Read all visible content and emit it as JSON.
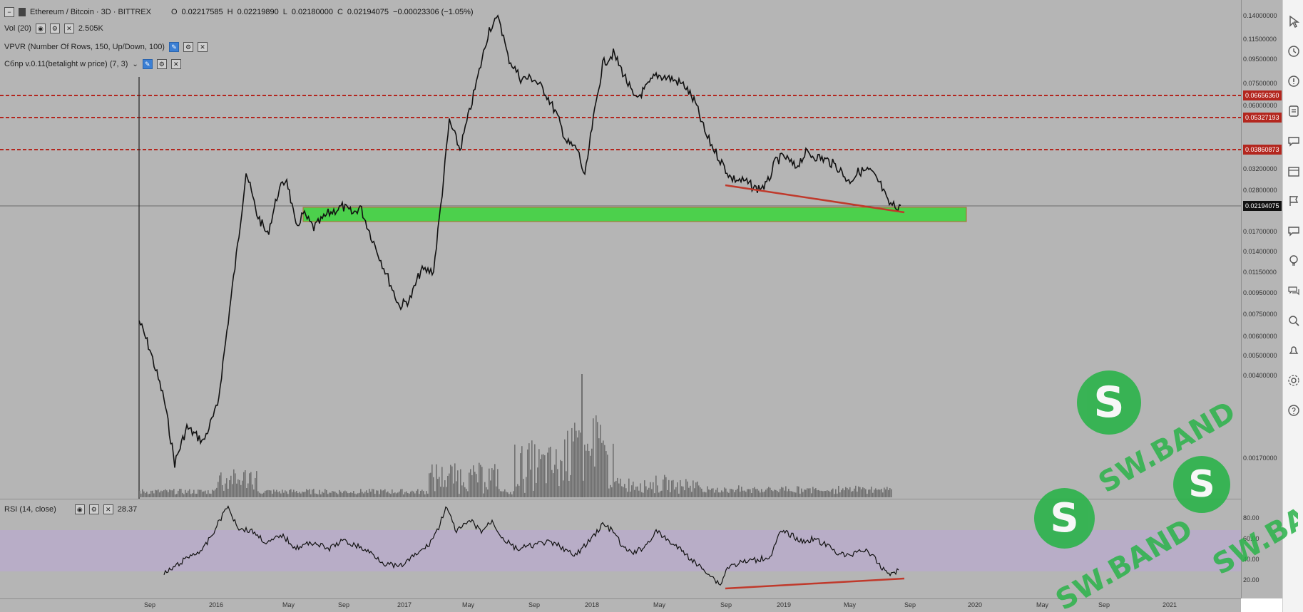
{
  "header": {
    "symbol": "Ethereum / Bitcoin · 3D · BITTREX",
    "open_label": "O",
    "open": "0.02217585",
    "high_label": "H",
    "high": "0.02219890",
    "low_label": "L",
    "low": "0.02180000",
    "close_label": "C",
    "close": "0.02194075",
    "change": "−0.00023306 (−1.05%)"
  },
  "indicators": {
    "vol": {
      "name": "Vol (20)",
      "value": "2.505K"
    },
    "vpvr": {
      "name": "VPVR (Number Of Rows, 150, Up/Down, 100)"
    },
    "cbnp": {
      "name": "Cбnp v.0.11(betalight w price) (7, 3)"
    },
    "rsi": {
      "name": "RSI (14, close)",
      "value": "28.37"
    }
  },
  "price_axis": {
    "ticks": [
      "0.14000000",
      "0.11500000",
      "0.09500000",
      "0.07500000",
      "0.06000000",
      "0.03200000",
      "0.02800000",
      "0.01700000",
      "0.01400000",
      "0.01150000",
      "0.00950000",
      "0.00750000",
      "0.00600000",
      "0.00500000",
      "0.00400000",
      "0.00170000"
    ],
    "levels": [
      {
        "value": "0.06656360",
        "color": "#b3261e"
      },
      {
        "value": "0.05327193",
        "color": "#b3261e"
      },
      {
        "value": "0.03860873",
        "color": "#b3261e"
      },
      {
        "value": "0.02194075",
        "color": "#111111"
      }
    ]
  },
  "rsi_axis": {
    "ticks": [
      "80.00",
      "60.00",
      "40.00",
      "20.00"
    ]
  },
  "time_axis": {
    "labels": [
      "Sep",
      "2016",
      "May",
      "Sep",
      "2017",
      "May",
      "Sep",
      "2018",
      "May",
      "Sep",
      "2019",
      "May",
      "Sep",
      "2020",
      "May",
      "Sep",
      "2021"
    ]
  },
  "right_toolbar": {
    "icons": [
      "cursor-icon",
      "clock-icon",
      "alert-icon",
      "list-icon",
      "chat-icon",
      "calendar-icon",
      "flag-icon",
      "message-icon",
      "lightbulb-icon",
      "comments-icon",
      "search-icon",
      "bell-icon",
      "settings-icon",
      "help-icon"
    ]
  },
  "watermark": {
    "text": "SW.BAND"
  },
  "colors": {
    "background": "#b5b5b5",
    "resistance": "#b3261e",
    "support_zone": "#4cd04c",
    "rsi_band": "#b8acc9",
    "divergence": "#c0392b"
  }
}
